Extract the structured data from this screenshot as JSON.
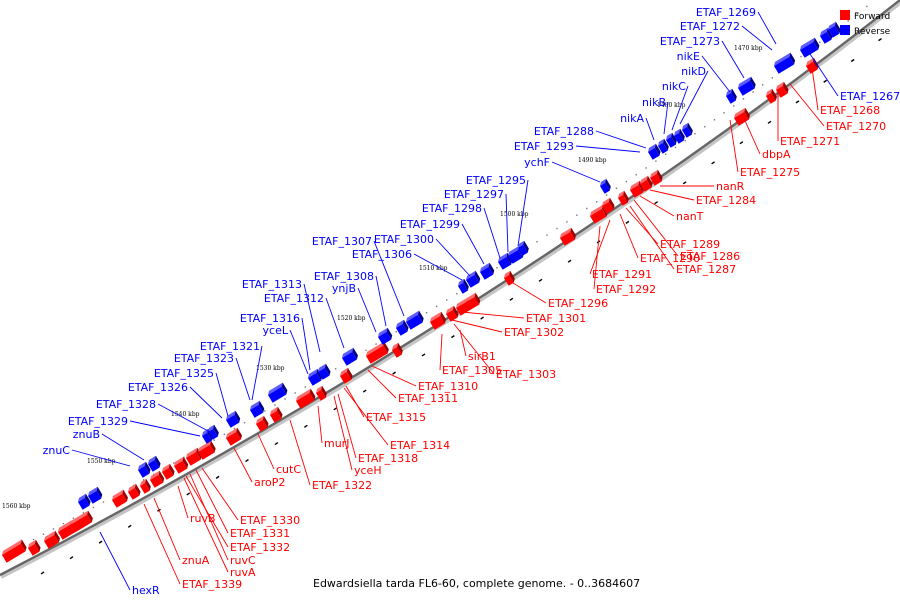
{
  "caption": "Edwardsiella tarda FL6-60, complete genome. - 0..3684607",
  "legend": {
    "forward": {
      "label": "Forward",
      "color": "#ff0000"
    },
    "reverse": {
      "label": "Reverse",
      "color": "#0000ff"
    }
  },
  "ticks": [
    "1470 kbp",
    "1480 kbp",
    "1490 kbp",
    "1500 kbp",
    "1510 kbp",
    "1520 kbp",
    "1530 kbp",
    "1540 kbp",
    "1550 kbp",
    "1560 kbp"
  ],
  "labels": {
    "fwd": [
      "ETAF_1268",
      "ETAF_1270",
      "ETAF_1271",
      "dbpA",
      "ETAF_1275",
      "nanR",
      "ETAF_1284",
      "nanT",
      "ETAF_1289",
      "ETAF_1286",
      "ETAF_1290",
      "ETAF_1287",
      "ETAF_1291",
      "ETAF_1292",
      "ETAF_1296",
      "ETAF_1301",
      "ETAF_1302",
      "sirB1",
      "ETAF_1305",
      "ETAF_1303",
      "ETAF_1310",
      "ETAF_1311",
      "ETAF_1315",
      "ETAF_1314",
      "murJ",
      "ETAF_1318",
      "yceH",
      "cutC",
      "ETAF_1322",
      "aroP2",
      "ETAF_1330",
      "ruvB",
      "ETAF_1331",
      "ETAF_1332",
      "ruvC",
      "znuA",
      "ruvA",
      "ETAF_1339"
    ],
    "rev": [
      "ETAF_1269",
      "ETAF_1272",
      "ETAF_1273",
      "nikE",
      "nikD",
      "nikC",
      "nikB",
      "nikA",
      "ETAF_1288",
      "ETAF_1293",
      "ychF",
      "ETAF_1295",
      "ETAF_1297",
      "ETAF_1298",
      "ETAF_1299",
      "ETAF_1307",
      "ETAF_1300",
      "ETAF_1306",
      "ETAF_1308",
      "ynjB",
      "ETAF_1313",
      "ETAF_1312",
      "ETAF_1316",
      "yceL",
      "ETAF_1321",
      "ETAF_1323",
      "ETAF_1325",
      "ETAF_1326",
      "ETAF_1328",
      "ETAF_1329",
      "znuB",
      "znuC",
      "ETAF_1267",
      "hexR"
    ]
  }
}
